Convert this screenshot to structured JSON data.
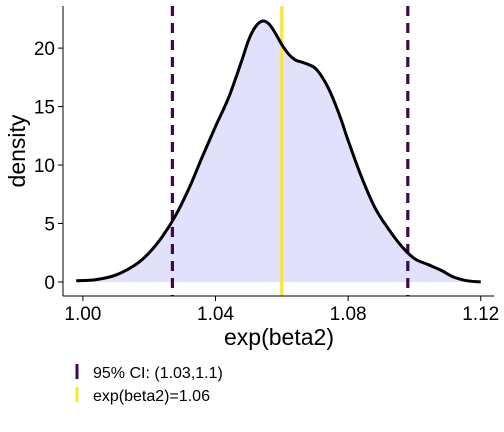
{
  "chart_data": {
    "type": "area",
    "xlabel": "exp(beta2)",
    "ylabel": "density",
    "xlim": [
      0.994,
      1.124
    ],
    "ylim": [
      -1.2,
      23.6
    ],
    "x_ticks": [
      1.0,
      1.04,
      1.08,
      1.12
    ],
    "x_tick_labels": [
      "1.00",
      "1.04",
      "1.08",
      "1.12"
    ],
    "y_ticks": [
      0,
      5,
      10,
      15,
      20
    ],
    "y_tick_labels": [
      "0",
      "5",
      "10",
      "15",
      "20"
    ],
    "grid": false,
    "legend_position": "bottom",
    "density": {
      "x": [
        0.998,
        1.004,
        1.01,
        1.016,
        1.02,
        1.024,
        1.028,
        1.032,
        1.036,
        1.04,
        1.044,
        1.048,
        1.05,
        1.052,
        1.054,
        1.056,
        1.058,
        1.06,
        1.062,
        1.064,
        1.066,
        1.068,
        1.07,
        1.072,
        1.074,
        1.076,
        1.078,
        1.08,
        1.084,
        1.088,
        1.092,
        1.096,
        1.1,
        1.104,
        1.108,
        1.112,
        1.116,
        1.12
      ],
      "y": [
        0.1,
        0.2,
        0.6,
        1.5,
        2.5,
        3.9,
        5.7,
        8.0,
        10.7,
        13.3,
        15.8,
        19.0,
        20.7,
        21.8,
        22.3,
        22.1,
        21.3,
        20.3,
        19.5,
        19.0,
        18.8,
        18.6,
        18.3,
        17.6,
        16.6,
        15.3,
        13.8,
        12.1,
        9.0,
        6.4,
        4.6,
        3.1,
        2.0,
        1.5,
        1.0,
        0.4,
        0.1,
        0.0
      ],
      "fill": "#e1e1fc",
      "stroke": "#000000"
    },
    "ci_lines": {
      "values": [
        1.027,
        1.098
      ],
      "color": "#3d0a4f",
      "style": "dashed"
    },
    "point_estimate": {
      "value": 1.06,
      "color": "#fde725"
    }
  },
  "legend": {
    "items": [
      {
        "label": "95% CI: (1.03,1.1)",
        "color": "#3d0a4f"
      },
      {
        "label": "exp(beta2)=1.06",
        "color": "#fde725"
      }
    ]
  }
}
